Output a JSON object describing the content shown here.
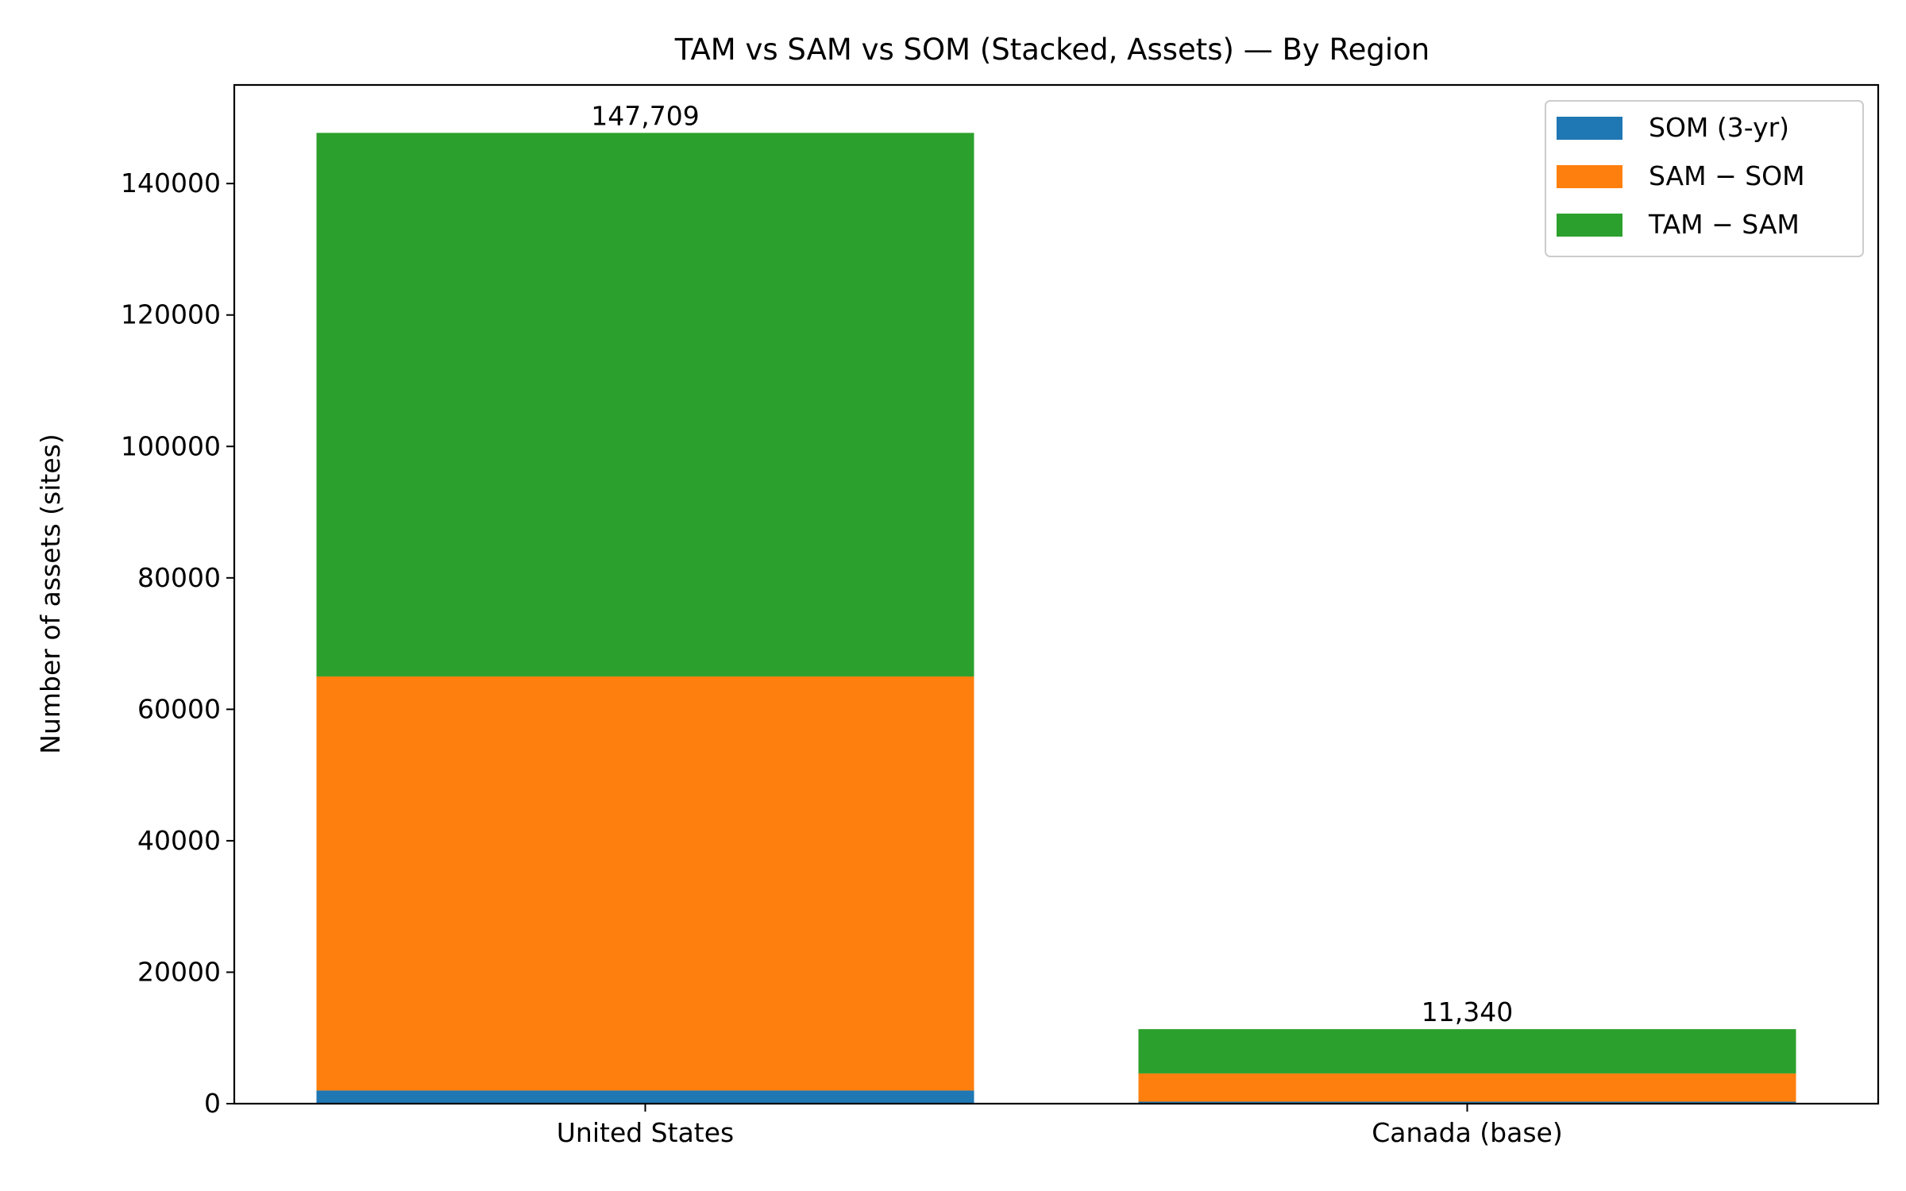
{
  "chart_data": {
    "type": "bar",
    "stacked": true,
    "title": "TAM vs SAM vs SOM (Stacked, Assets) — By Region",
    "xlabel": "",
    "ylabel": "Number of assets (sites)",
    "categories": [
      "United States",
      "Canada (base)"
    ],
    "ylim": [
      0,
      155000
    ],
    "yticks": [
      0,
      20000,
      40000,
      60000,
      80000,
      100000,
      120000,
      140000
    ],
    "ytick_labels": [
      "0",
      "20000",
      "40000",
      "60000",
      "80000",
      "100000",
      "120000",
      "140000"
    ],
    "series": [
      {
        "name": "SOM (3-yr)",
        "color": "#1f77b4",
        "values": [
          2000,
          300
        ]
      },
      {
        "name": "SAM − SOM",
        "color": "#ff7f0e",
        "values": [
          63000,
          4300
        ]
      },
      {
        "name": "TAM − SAM",
        "color": "#2ca02c",
        "values": [
          82709,
          6740
        ]
      }
    ],
    "totals": [
      147709,
      11340
    ],
    "total_labels": [
      "147,709",
      "11,340"
    ],
    "legend": {
      "placement": "top-right"
    },
    "grid": false
  }
}
